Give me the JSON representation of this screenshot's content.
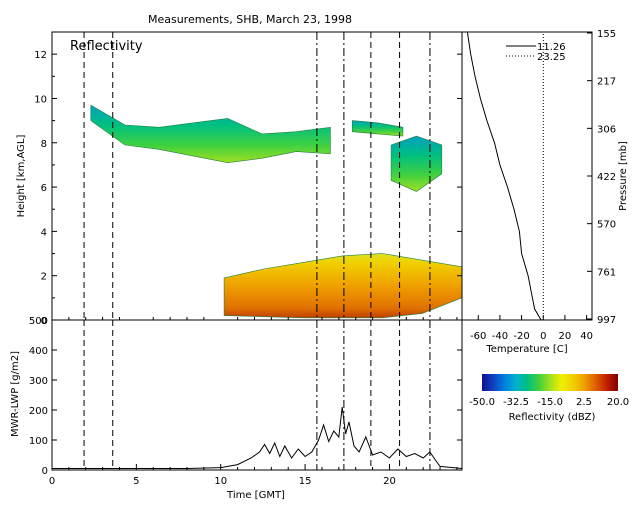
{
  "title": "Measurements, SHB, March 23, 1998",
  "colors": {
    "colorbar": [
      "#101090",
      "#1040c0",
      "#0080e0",
      "#00b0d0",
      "#00c080",
      "#40d040",
      "#a0e020",
      "#f0f000",
      "#f0d000",
      "#f0a000",
      "#e06000",
      "#c02000",
      "#800000"
    ]
  },
  "chart_data": [
    {
      "type": "heatmap",
      "panel_label": "Reflectivity",
      "xlim": [
        0,
        24.3
      ],
      "ylim": [
        0,
        13
      ],
      "ylabel": "Height [km,AGL]",
      "yticks": [
        0,
        2,
        4,
        6,
        8,
        10,
        12
      ],
      "yticklabels": [
        "0",
        "2",
        "4",
        "6",
        "8",
        "10",
        "12"
      ],
      "sounding_times": [
        1.9,
        3.6,
        15.7,
        17.3,
        18.9,
        20.6,
        22.4
      ],
      "regions": [
        {
          "name": "upper cloud",
          "x_start": 2.3,
          "x_end": 16.5,
          "top_km": [
            9.7,
            8.8,
            8.7,
            8.9,
            9.1,
            8.4,
            8.5,
            8.7
          ],
          "base_km": [
            9.0,
            7.9,
            7.7,
            7.4,
            7.1,
            7.3,
            7.6,
            7.5
          ]
        },
        {
          "name": "upper cloud",
          "x_start": 17.8,
          "x_end": 20.8,
          "top_km": [
            9.0,
            8.9,
            8.7
          ],
          "base_km": [
            8.5,
            8.4,
            8.3
          ]
        },
        {
          "name": "mid cloud",
          "x_start": 20.1,
          "x_end": 23.1,
          "top_km": [
            7.9,
            8.3,
            7.9
          ],
          "base_km": [
            6.3,
            5.8,
            6.6
          ]
        },
        {
          "name": "boundary layer",
          "x_start": 10.2,
          "x_end": 24.3,
          "top_km": [
            1.9,
            2.3,
            2.6,
            2.9,
            3.0,
            2.7,
            2.4
          ],
          "base_km": [
            0.2,
            0.15,
            0.1,
            0.1,
            0.1,
            0.3,
            1.0
          ]
        }
      ]
    },
    {
      "type": "line",
      "xlabel": "Time [GMT]",
      "ylabel": "MWR-LWP [g/m2]",
      "xlim": [
        0,
        24.3
      ],
      "ylim": [
        0,
        500
      ],
      "xticks": [
        0,
        5,
        10,
        15,
        20
      ],
      "xticklabels": [
        "0",
        "5",
        "10",
        "15",
        "20"
      ],
      "yticks": [
        0,
        100,
        200,
        300,
        400,
        500
      ],
      "yticklabels": [
        "0",
        "100",
        "200",
        "300",
        "400",
        "500"
      ],
      "x": [
        0,
        8,
        10,
        11,
        11.8,
        12.3,
        12.6,
        12.9,
        13.2,
        13.5,
        13.8,
        14.2,
        14.6,
        15,
        15.4,
        15.8,
        16.1,
        16.4,
        16.7,
        17,
        17.2,
        17.4,
        17.6,
        17.9,
        18.2,
        18.6,
        19,
        19.5,
        20,
        20.5,
        21,
        21.5,
        22,
        22.4,
        22.7,
        23,
        24.3
      ],
      "y": [
        5,
        5,
        8,
        18,
        40,
        60,
        85,
        55,
        90,
        45,
        80,
        40,
        70,
        45,
        60,
        100,
        150,
        95,
        130,
        110,
        210,
        120,
        160,
        80,
        60,
        110,
        50,
        60,
        40,
        70,
        45,
        55,
        40,
        60,
        35,
        12,
        5
      ]
    },
    {
      "type": "line",
      "xlabel": "Temperature [C]",
      "y2label": "Pressure [mb]",
      "xlim": [
        -75,
        45
      ],
      "xticks": [
        -60,
        -40,
        -20,
        0,
        20,
        40
      ],
      "xticklabels": [
        "-60",
        "-40",
        "-20",
        "0",
        "20",
        "40"
      ],
      "pressure_ticks": [
        "155",
        "217",
        "306",
        "422",
        "570",
        "761",
        "997"
      ],
      "series": [
        {
          "name": "11.26",
          "height_km": [
            0,
            0.5,
            1,
            2,
            3,
            4,
            5,
            6,
            7,
            8,
            9,
            10,
            11,
            12,
            13
          ],
          "temperature_c": [
            -2,
            -8,
            -10,
            -14,
            -20,
            -22,
            -27,
            -33,
            -40,
            -45,
            -52,
            -58,
            -63,
            -67,
            -70
          ]
        },
        {
          "name": "23.25",
          "height_km": [
            0,
            13
          ],
          "temperature_c": [
            0,
            0
          ]
        }
      ]
    },
    {
      "type": "heatmap",
      "colorbar_label": "Reflectivity (dBZ)",
      "colorbar_ticks": [
        "-50.0",
        "-32.5",
        "-15.0",
        "2.5",
        "20.0"
      ],
      "range": [
        -50,
        20
      ]
    }
  ]
}
